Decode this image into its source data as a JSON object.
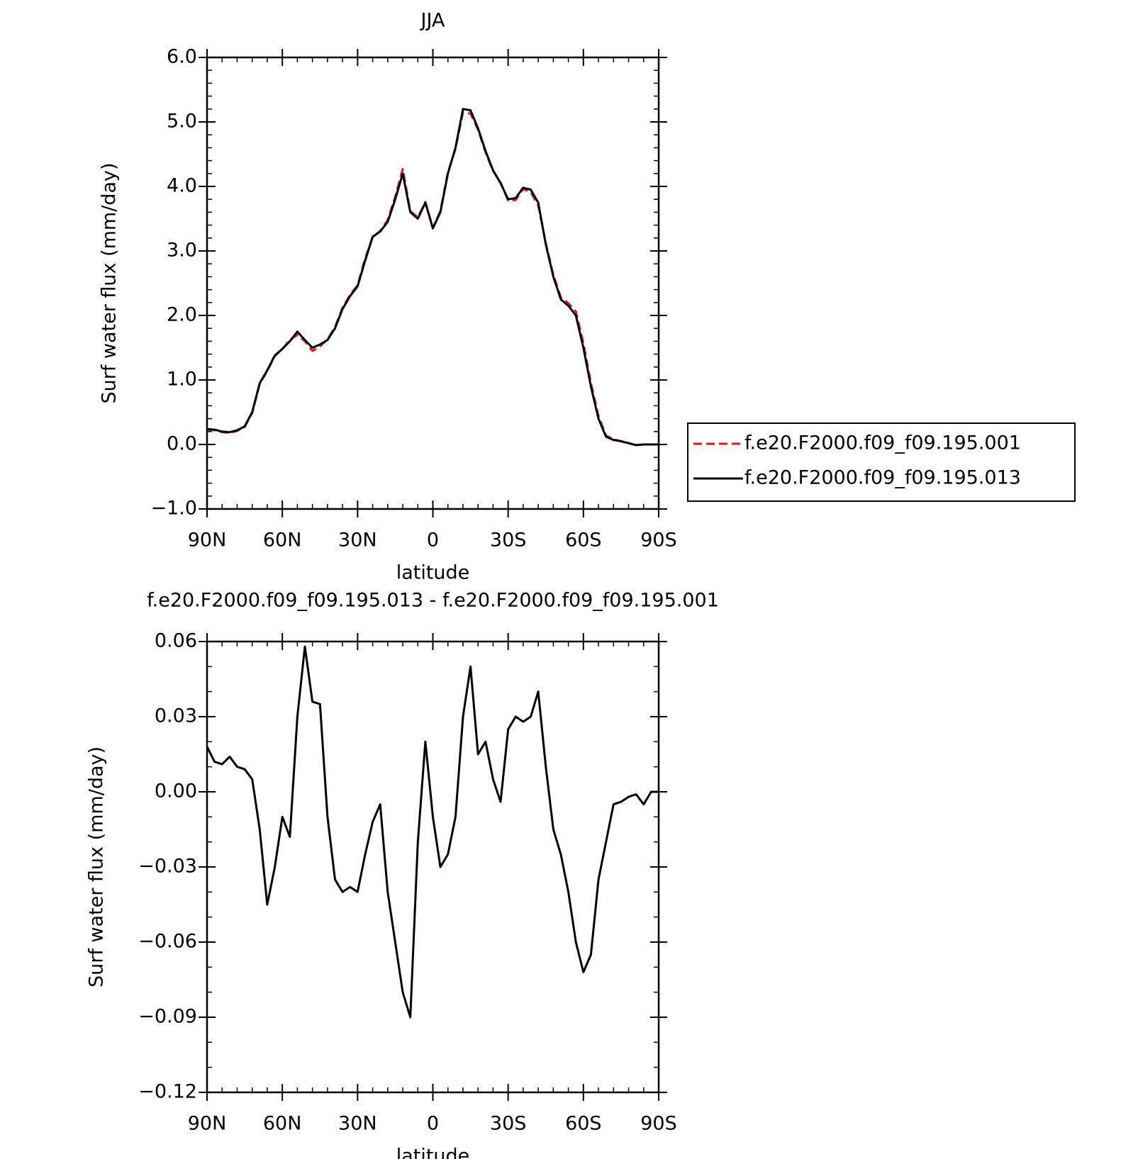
{
  "chart_data": [
    {
      "type": "line",
      "title": "JJA",
      "x_label": "latitude",
      "y_label": "Surf water flux (mm/day)",
      "x": [
        90,
        87,
        84,
        81,
        78,
        75,
        72,
        69,
        66,
        63,
        60,
        57,
        54,
        51,
        48,
        45,
        42,
        39,
        36,
        33,
        30,
        27,
        24,
        21,
        18,
        15,
        12,
        9,
        6,
        3,
        0,
        -3,
        -6,
        -9,
        -12,
        -15,
        -18,
        -21,
        -24,
        -27,
        -30,
        -33,
        -36,
        -39,
        -42,
        -45,
        -48,
        -51,
        -54,
        -57,
        -60,
        -63,
        -66,
        -69,
        -72,
        -75,
        -78,
        -81,
        -84,
        -87,
        -90
      ],
      "xlim": [
        90,
        -90
      ],
      "xticks": [
        {
          "value": 90,
          "label": "90N"
        },
        {
          "value": 60,
          "label": "60N"
        },
        {
          "value": 30,
          "label": "30N"
        },
        0,
        {
          "value": -30,
          "label": "30S"
        },
        {
          "value": -60,
          "label": "60S"
        },
        {
          "value": -90,
          "label": "90S"
        }
      ],
      "ylim": [
        -1,
        6
      ],
      "yticks": [
        {
          "value": 6,
          "label": "6.0"
        },
        {
          "value": 5,
          "label": "5.0"
        },
        {
          "value": 4,
          "label": "4.0"
        },
        {
          "value": 3,
          "label": "3.0"
        },
        {
          "value": 2,
          "label": "2.0"
        },
        {
          "value": 1,
          "label": "1.0"
        },
        {
          "value": 0,
          "label": "0.0"
        },
        {
          "value": -1,
          "label": "−1.0"
        }
      ],
      "legend": "right",
      "series": [
        {
          "name": "f.e20.F2000.f09_f09.195.001",
          "color": "#e8141c",
          "line_style": "dashed",
          "values": [
            0.23,
            0.22,
            0.19,
            0.18,
            0.21,
            0.27,
            0.49,
            0.94,
            1.14,
            1.37,
            1.48,
            1.62,
            1.7,
            1.6,
            1.45,
            1.52,
            1.63,
            1.82,
            2.12,
            2.32,
            2.47,
            2.88,
            3.22,
            3.31,
            3.48,
            3.84,
            4.27,
            3.62,
            3.52,
            3.76,
            3.36,
            3.62,
            4.22,
            4.58,
            5.15,
            5.13,
            4.88,
            4.53,
            4.24,
            4.06,
            3.78,
            3.79,
            3.96,
            3.91,
            3.71,
            3.12,
            2.63,
            2.28,
            2.19,
            2.06,
            1.57,
            0.95,
            0.44,
            0.14,
            0.08,
            0.05,
            0.02,
            -0.01,
            0.0,
            0.0,
            0.0
          ]
        },
        {
          "name": "f.e20.F2000.f09_f09.195.013",
          "color": "#000000",
          "line_style": "solid",
          "values": [
            0.24,
            0.23,
            0.2,
            0.19,
            0.22,
            0.28,
            0.5,
            0.95,
            1.15,
            1.38,
            1.48,
            1.6,
            1.75,
            1.62,
            1.5,
            1.55,
            1.62,
            1.8,
            2.1,
            2.3,
            2.45,
            2.85,
            3.22,
            3.3,
            3.45,
            3.8,
            4.2,
            3.6,
            3.5,
            3.75,
            3.35,
            3.6,
            4.2,
            4.6,
            5.2,
            5.18,
            4.9,
            4.55,
            4.25,
            4.05,
            3.8,
            3.82,
            3.98,
            3.95,
            3.75,
            3.1,
            2.6,
            2.25,
            2.15,
            2.0,
            1.5,
            0.9,
            0.4,
            0.12,
            0.07,
            0.05,
            0.02,
            -0.01,
            0.0,
            0.0,
            0.0
          ]
        }
      ]
    },
    {
      "type": "line",
      "title": "f.e20.F2000.f09_f09.195.013 - f.e20.F2000.f09_f09.195.001",
      "x_label": "latitude",
      "y_label": "Surf water flux (mm/day)",
      "x": [
        90,
        87,
        84,
        81,
        78,
        75,
        72,
        69,
        66,
        63,
        60,
        57,
        54,
        51,
        48,
        45,
        42,
        39,
        36,
        33,
        30,
        27,
        24,
        21,
        18,
        15,
        12,
        9,
        6,
        3,
        0,
        -3,
        -6,
        -9,
        -12,
        -15,
        -18,
        -21,
        -24,
        -27,
        -30,
        -33,
        -36,
        -39,
        -42,
        -45,
        -48,
        -51,
        -54,
        -57,
        -60,
        -63,
        -66,
        -69,
        -72,
        -75,
        -78,
        -81,
        -84,
        -87,
        -90
      ],
      "xlim": [
        90,
        -90
      ],
      "xticks": [
        {
          "value": 90,
          "label": "90N"
        },
        {
          "value": 60,
          "label": "60N"
        },
        {
          "value": 30,
          "label": "30N"
        },
        0,
        {
          "value": -30,
          "label": "30S"
        },
        {
          "value": -60,
          "label": "60S"
        },
        {
          "value": -90,
          "label": "90S"
        }
      ],
      "ylim": [
        -0.12,
        0.06
      ],
      "yticks": [
        0.06,
        0.03,
        {
          "value": 0,
          "label": "0.00"
        },
        {
          "value": -0.03,
          "label": "−0.03"
        },
        {
          "value": -0.06,
          "label": "−0.06"
        },
        {
          "value": -0.09,
          "label": "−0.09"
        },
        {
          "value": -0.12,
          "label": "−0.12"
        }
      ],
      "series": [
        {
          "color": "#000000",
          "line_style": "solid",
          "values": [
            0.018,
            0.012,
            0.011,
            0.014,
            0.01,
            0.009,
            0.005,
            -0.015,
            -0.045,
            -0.03,
            -0.01,
            -0.018,
            0.03,
            0.058,
            0.036,
            0.035,
            -0.01,
            -0.035,
            -0.04,
            -0.038,
            -0.04,
            -0.025,
            -0.012,
            -0.005,
            -0.04,
            -0.06,
            -0.08,
            -0.09,
            -0.02,
            0.02,
            -0.01,
            -0.03,
            -0.025,
            -0.01,
            0.03,
            0.05,
            0.015,
            0.02,
            0.005,
            -0.004,
            0.025,
            0.03,
            0.028,
            0.03,
            0.04,
            0.01,
            -0.015,
            -0.025,
            -0.04,
            -0.06,
            -0.072,
            -0.065,
            -0.035,
            -0.02,
            -0.005,
            -0.004,
            -0.002,
            -0.001,
            -0.005,
            0.0,
            0.0
          ]
        }
      ]
    }
  ]
}
